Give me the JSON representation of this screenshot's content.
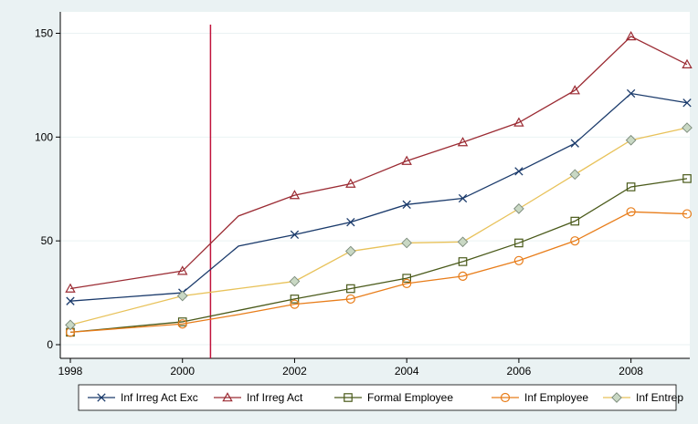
{
  "chart_data": {
    "type": "line",
    "title": "",
    "xlabel": "",
    "ylabel": "",
    "x": [
      1998,
      2000,
      2001,
      2002,
      2003,
      2004,
      2005,
      2006,
      2007,
      2008,
      2009
    ],
    "xlim": [
      1998,
      2009
    ],
    "ylim": [
      0,
      155
    ],
    "x_ticks": [
      "1998",
      "2000",
      "2002",
      "2004",
      "2006",
      "2008"
    ],
    "x_tick_values": [
      1998,
      2000,
      2002,
      2004,
      2006,
      2008
    ],
    "y_ticks": [
      "0",
      "50",
      "100",
      "150"
    ],
    "y_tick_values": [
      0,
      50,
      100,
      150
    ],
    "grid": "horizontal",
    "legend_position": "bottom",
    "reference_line": {
      "x": 2000.5,
      "color": "#c0143c"
    },
    "series": [
      {
        "name": "Inf Irreg Act Exc",
        "color": "#1a3a6b",
        "marker": "x",
        "values": [
          21,
          25,
          47.5,
          53,
          59,
          67.5,
          70.5,
          83.5,
          97,
          121,
          116.5
        ]
      },
      {
        "name": "Inf Irreg Act",
        "color": "#9b2b33",
        "marker": "triangle",
        "values": [
          27,
          35.5,
          62,
          72,
          77.5,
          88.5,
          97.5,
          107,
          122.5,
          148.5,
          135
        ]
      },
      {
        "name": "Formal Employee",
        "color": "#4a5a1a",
        "marker": "square",
        "values": [
          6,
          11,
          16.5,
          22,
          27,
          32,
          40,
          49,
          59.5,
          76,
          80
        ]
      },
      {
        "name": "Inf Employee",
        "color": "#e87d1a",
        "marker": "circle",
        "values": [
          6,
          10,
          14.5,
          19.5,
          22,
          29.5,
          33,
          40.5,
          50,
          64,
          63
        ]
      },
      {
        "name": "Inf Entrep",
        "color": "#e8c25a",
        "marker": "diamond",
        "values": [
          9.5,
          23.5,
          27,
          30.5,
          45,
          49,
          49.5,
          65.5,
          82,
          98.5,
          104.5
        ]
      }
    ]
  }
}
